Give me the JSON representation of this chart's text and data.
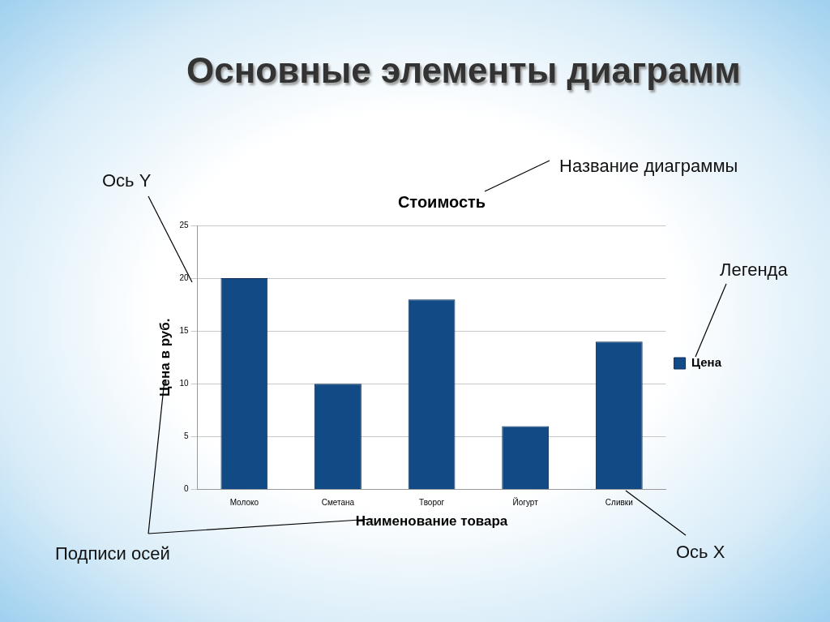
{
  "chart_data": {
    "type": "bar",
    "title": "Стоимость",
    "xlabel": "Наименование товара",
    "ylabel": "Цена в руб.",
    "categories": [
      "Молоко",
      "Сметана",
      "Творог",
      "Йогурт",
      "Сливки"
    ],
    "series": [
      {
        "name": "Цена",
        "color": "#124a86",
        "values": [
          20,
          10,
          18,
          6,
          14
        ]
      }
    ],
    "ylim": [
      0,
      25
    ],
    "yticks": [
      0,
      5,
      10,
      15,
      20,
      25
    ],
    "grid": "y",
    "legend": "right",
    "annotations": [
      "Основные элементы диаграмм",
      "Название диаграммы",
      "Ось Y",
      "Легенда",
      "Подписи осей",
      "Ось X"
    ]
  }
}
